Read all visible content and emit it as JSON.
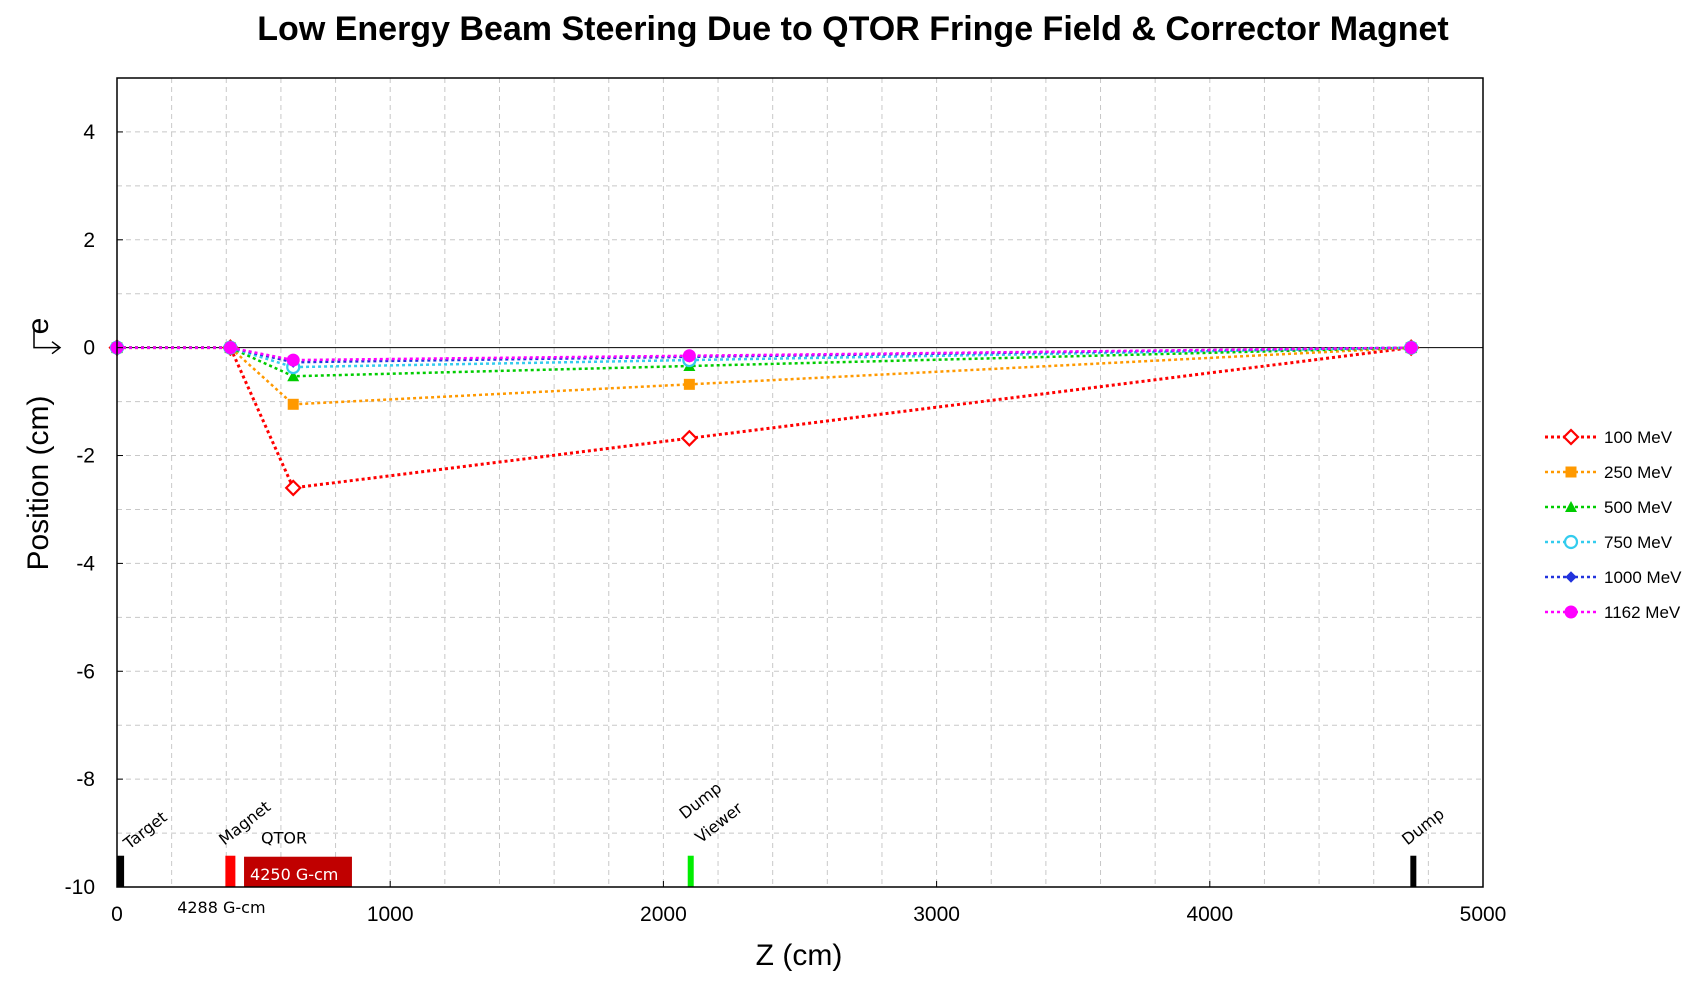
{
  "chart_data": {
    "type": "line",
    "title": "Low Energy Beam Steering Due to QTOR Fringe Field & Corrector Magnet",
    "xlabel": "Z (cm)",
    "ylabel": "Position  (cm)",
    "xlim": [
      0,
      5000
    ],
    "ylim": [
      -10,
      5
    ],
    "xticks": [
      0,
      1000,
      2000,
      3000,
      4000,
      5000
    ],
    "yticks": [
      -10,
      -8,
      -6,
      -4,
      -2,
      0,
      2,
      4
    ],
    "grid": true,
    "legend_position": "right",
    "x": [
      0,
      415,
      645,
      2095,
      4737
    ],
    "series": [
      {
        "name": "100 MeV",
        "color": "#ff0000",
        "marker": "diamond-open",
        "values": [
          0,
          0,
          -2.6,
          -1.68,
          0
        ]
      },
      {
        "name": "250 MeV",
        "color": "#ff9900",
        "marker": "square",
        "values": [
          0,
          0,
          -1.05,
          -0.68,
          0
        ]
      },
      {
        "name": "500 MeV",
        "color": "#00cc00",
        "marker": "triangle",
        "values": [
          0,
          0,
          -0.53,
          -0.34,
          0
        ]
      },
      {
        "name": "750 MeV",
        "color": "#33ccee",
        "marker": "circle-open",
        "values": [
          0,
          0,
          -0.36,
          -0.23,
          0
        ]
      },
      {
        "name": "1000 MeV",
        "color": "#2233dd",
        "marker": "diamond",
        "values": [
          0,
          0,
          -0.27,
          -0.17,
          0
        ]
      },
      {
        "name": "1162 MeV",
        "color": "#ff00ff",
        "marker": "circle",
        "values": [
          0,
          0,
          -0.23,
          -0.15,
          0
        ]
      }
    ],
    "beam_label": "e",
    "elements": [
      {
        "label": "Target",
        "z": 15,
        "color": "#000000"
      },
      {
        "label": "Magnet",
        "z": 415,
        "color": "#ff0000",
        "field_label": "4288 G-cm"
      },
      {
        "label": "QTOR",
        "z_start": 465,
        "z_end": 860,
        "color": "#c00000",
        "field_label": "4250 G-cm"
      },
      {
        "label": "Dump",
        "sublabel": "Viewer",
        "z": 2100,
        "color": "#00ee00"
      },
      {
        "label": "Dump",
        "z": 4745,
        "color": "#000000"
      }
    ]
  }
}
